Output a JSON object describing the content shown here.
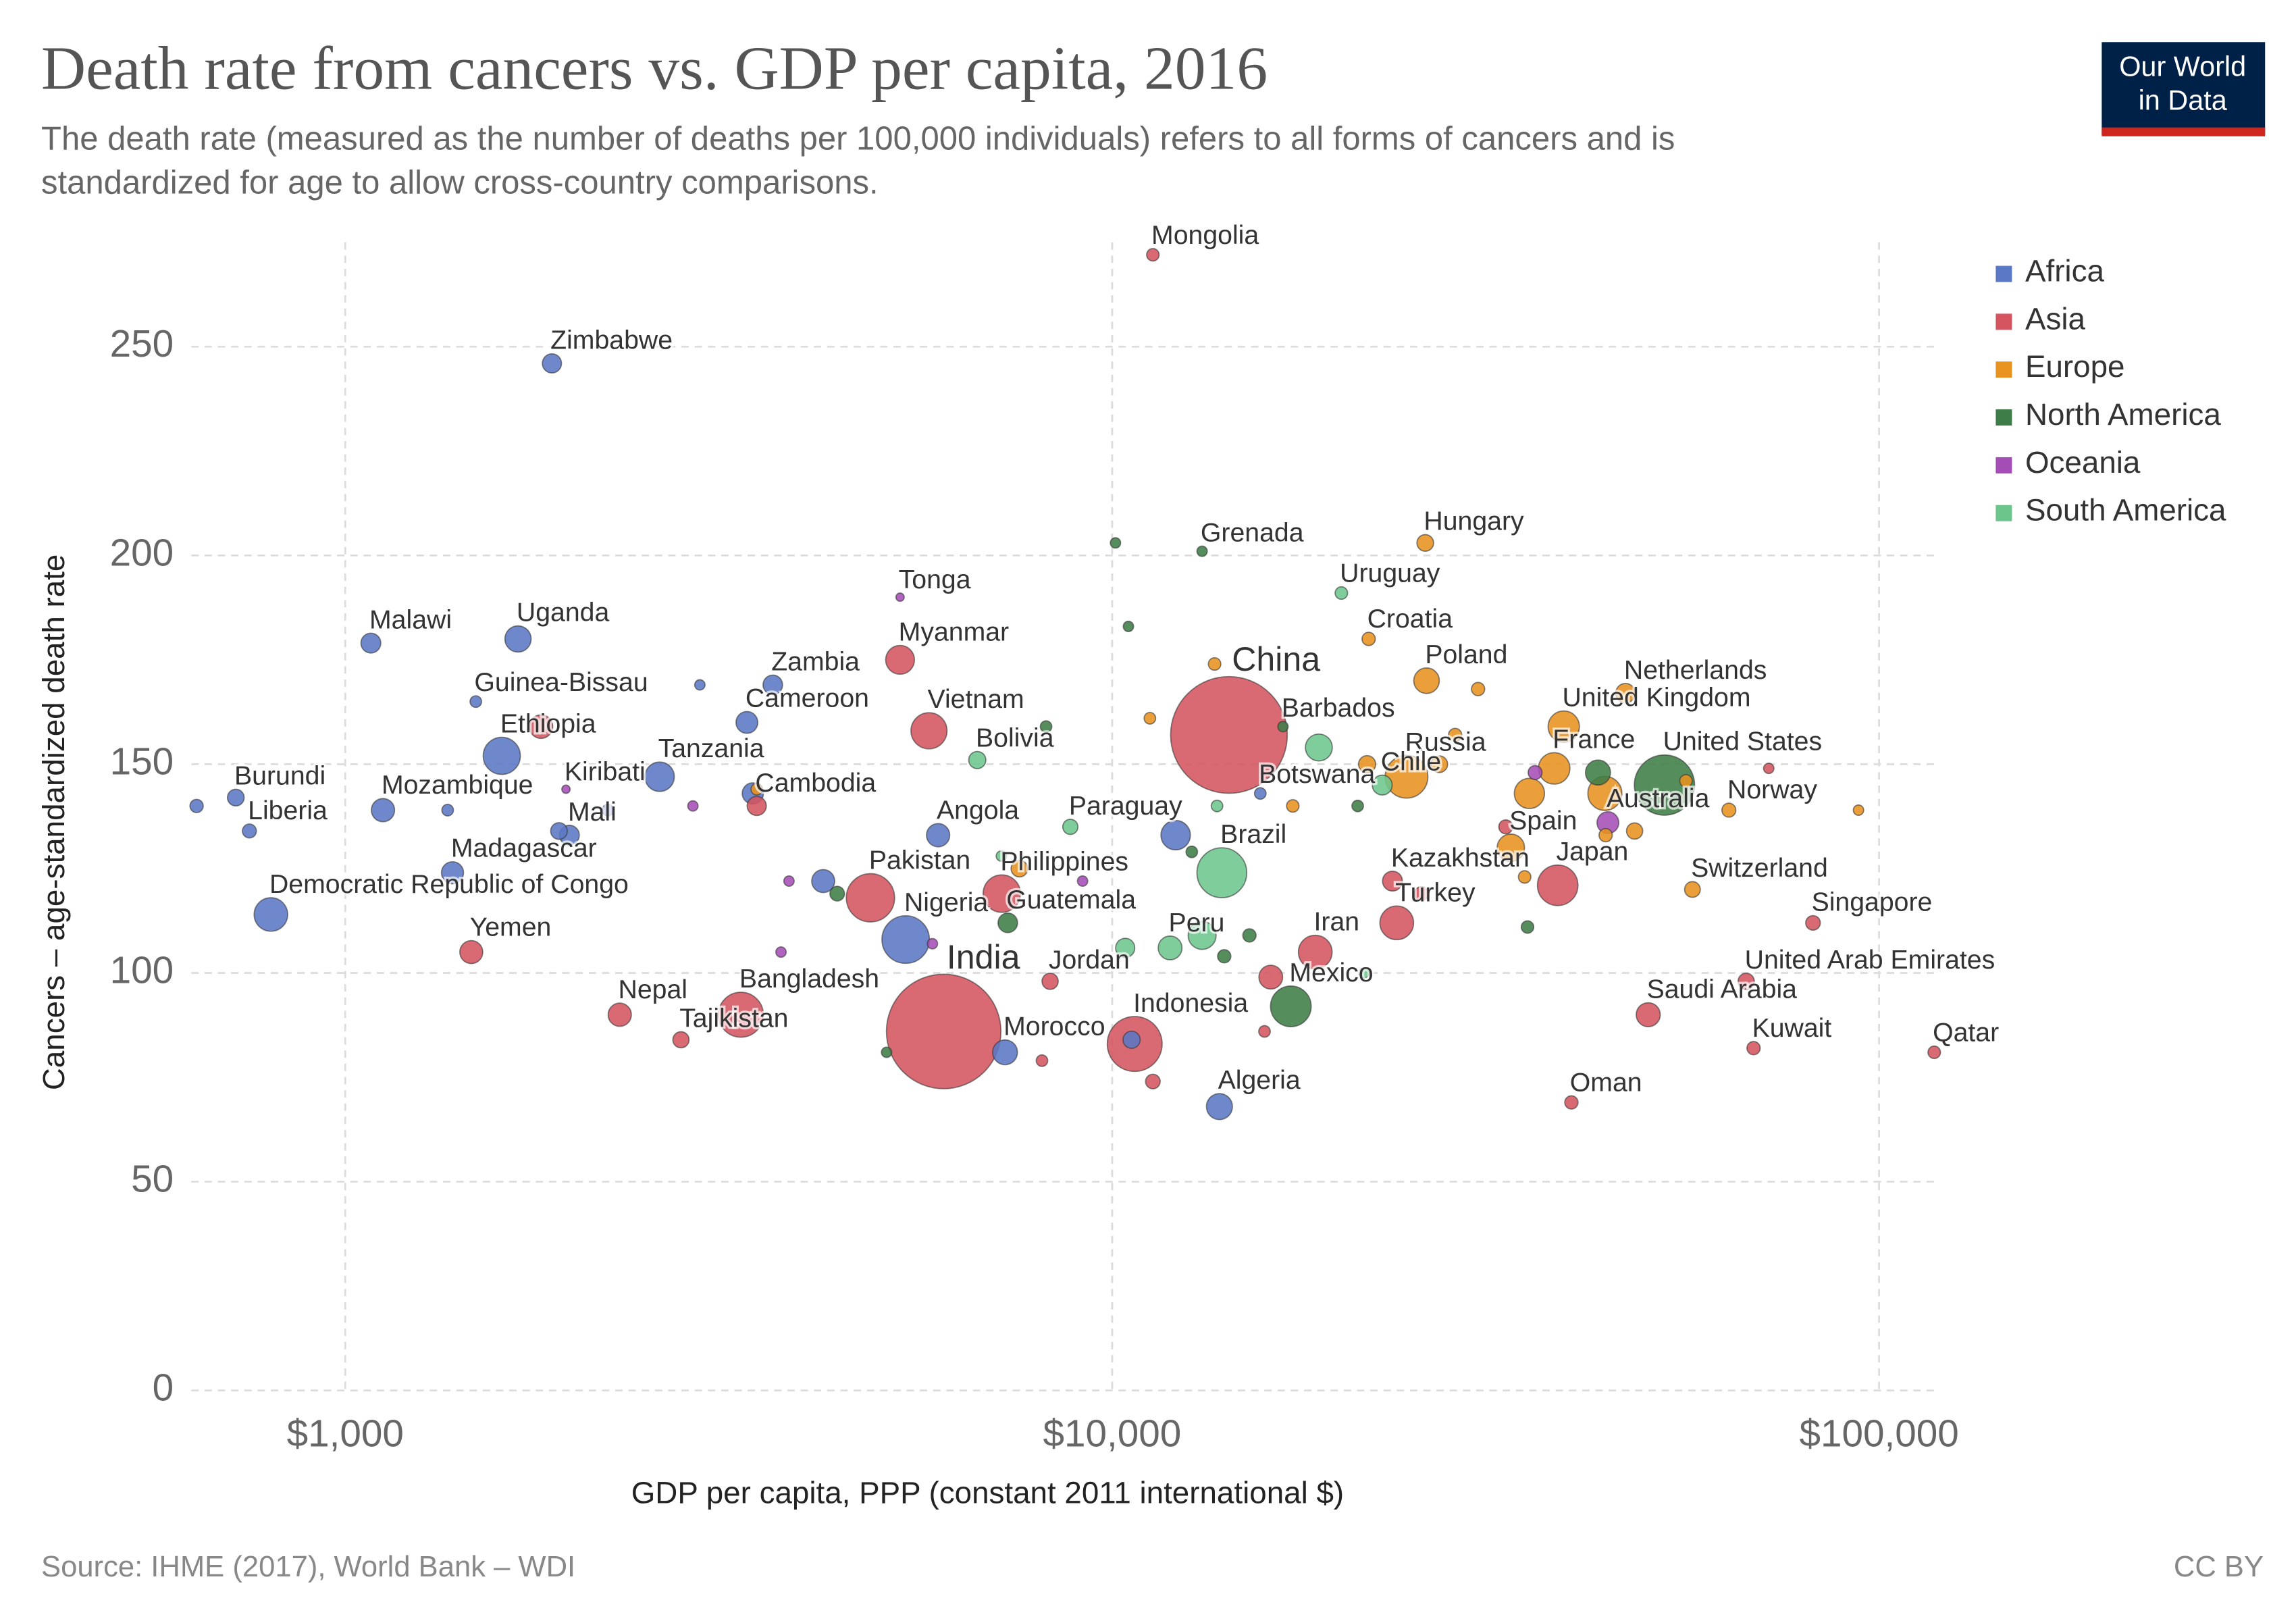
{
  "chart_data": {
    "type": "scatter",
    "title": "Death rate from cancers vs. GDP per capita, 2016",
    "subtitle": [
      "The death rate (measured as the number of deaths per 100,000 individuals) refers to all forms of cancers and is",
      "standardized for age to allow cross-country comparisons."
    ],
    "logo": [
      "Our World",
      "in Data"
    ],
    "x_label": "GDP per capita, PPP (constant 2011 international $)",
    "y_label": "Cancers – age-standardized death rate",
    "source": "Source: IHME (2017), World Bank – WDI",
    "license": "CC BY",
    "xscale": "log",
    "xlim": [
      630,
      120000
    ],
    "xticks": [
      {
        "value": 1000,
        "label": "$1,000"
      },
      {
        "value": 10000,
        "label": "$10,000"
      },
      {
        "value": 100000,
        "label": "$100,000"
      }
    ],
    "ylim": [
      0,
      275
    ],
    "yticks": [
      0,
      50,
      100,
      150,
      200,
      250
    ],
    "grid": true,
    "legend": "top-right",
    "series": [
      {
        "name": "Africa",
        "color": "#5b78c4",
        "x": [
          1860,
          1080,
          1680,
          1480,
          1600,
          720,
          750,
          1120,
          1960,
          1380,
          800,
          2570,
          3610,
          3340,
          5930,
          5380,
          7250,
          15600,
          13800,
          10600,
          12100,
          640,
          3400,
          2900,
          4200,
          1360,
          2200,
          1900
        ],
        "values": [
          246,
          179,
          180,
          165,
          152,
          142,
          134,
          139,
          133,
          124,
          114,
          147,
          169,
          160,
          133,
          108,
          81,
          143,
          68,
          84,
          133,
          140,
          143,
          169,
          122,
          139,
          139,
          134
        ],
        "sizes": [
          16,
          18,
          41,
          2,
          102,
          10,
          5,
          29,
          18,
          25,
          79,
          56,
          17,
          24,
          29,
          186,
          35,
          2,
          40,
          11,
          56,
          4,
          22,
          1,
          28,
          2,
          2,
          10
        ],
        "labels": [
          "Zimbabwe",
          "Malawi",
          "Uganda",
          "Guinea-Bissau",
          "Ethiopia",
          "Burundi",
          "Liberia",
          "Mozambique",
          "Mali",
          "Madagascar",
          "Democratic Republic of Congo",
          "Tanzania",
          "Zambia",
          "Cameroon",
          "Angola",
          "Nigeria",
          "Morocco",
          "Botswana",
          "Algeria",
          null,
          null,
          null,
          null,
          null,
          null,
          null,
          null,
          null
        ]
      },
      {
        "name": "Asia",
        "color": "#d4545f",
        "x": [
          11300,
          5290,
          5770,
          3440,
          4840,
          7180,
          8300,
          3280,
          2280,
          2740,
          1460,
          6030,
          14200,
          10700,
          18400,
          23200,
          23500,
          38100,
          67100,
          50000,
          82000,
          68600,
          118000,
          39700,
          1800,
          11300,
          16100,
          25300,
          32600,
          71800,
          8100,
          15800
        ],
        "values": [
          272,
          175,
          158,
          140,
          118,
          119,
          98,
          90,
          90,
          84,
          105,
          86,
          157,
          83,
          105,
          122,
          112,
          121,
          98,
          90,
          112,
          82,
          81,
          69,
          159,
          74,
          99,
          119,
          135,
          149,
          79,
          86
        ],
        "sizes": [
          3,
          53,
          95,
          16,
          193,
          104,
          9,
          163,
          29,
          9,
          28,
          1324,
          1379,
          261,
          80,
          18,
          80,
          127,
          9,
          32,
          6,
          4,
          3,
          4,
          30,
          6,
          31,
          5,
          5,
          1,
          2,
          2
        ],
        "labels": [
          "Mongolia",
          "Myanmar",
          "Vietnam",
          "Cambodia",
          "Pakistan",
          "Philippines",
          "Jordan",
          "Bangladesh",
          "Nepal",
          "Tajikistan",
          "Yemen",
          "India",
          "China",
          "Indonesia",
          "Iran",
          "Kazakhstan",
          "Turkey",
          "Japan",
          "United Arab Emirates",
          "Saudi Arabia",
          "Singapore",
          "Kuwait",
          "Qatar",
          "Oman",
          null,
          null,
          null,
          null,
          null,
          null,
          null,
          null
        ]
      },
      {
        "name": "Europe",
        "color": "#e8921f",
        "x": [
          25600,
          21600,
          25700,
          24200,
          46700,
          38800,
          37700,
          33100,
          57100,
          63700,
          43900,
          35000,
          94000,
          13600,
          11200,
          28000,
          26700,
          21500,
          17200,
          48000,
          44000,
          56000,
          30000,
          34500,
          7570,
          3440
        ],
        "values": [
          203,
          180,
          170,
          147,
          167,
          159,
          149,
          130,
          120,
          139,
          143,
          143,
          139,
          174,
          161,
          157,
          150,
          150,
          140,
          134,
          133,
          146,
          168,
          123,
          125,
          144
        ],
        "sizes": [
          10,
          4,
          38,
          144,
          17,
          66,
          67,
          46,
          8,
          5,
          82,
          60,
          1,
          3,
          2,
          4,
          10,
          11,
          3,
          9,
          4,
          3,
          4,
          3,
          10,
          2
        ],
        "labels": [
          "Hungary",
          "Croatia",
          "Poland",
          "Russia",
          "Netherlands",
          "United Kingdom",
          "France",
          "Spain",
          "Switzerland",
          "Norway",
          null,
          null,
          null,
          null,
          null,
          null,
          null,
          null,
          null,
          null,
          null,
          null,
          null,
          null,
          null,
          null
        ]
      },
      {
        "name": "North America",
        "color": "#3e7d47",
        "x": [
          13100,
          16700,
          7310,
          17100,
          52500,
          43000,
          10100,
          10500,
          8200,
          4380,
          5080,
          12700,
          15100,
          14000,
          34800,
          20900
        ],
        "values": [
          201,
          159,
          112,
          92,
          145,
          148,
          203,
          183,
          159,
          119,
          81,
          129,
          109,
          104,
          111,
          140
        ],
        "sizes": [
          1,
          1,
          17,
          128,
          323,
          36,
          1,
          1,
          2,
          6,
          1,
          2,
          4,
          4,
          3,
          2
        ],
        "labels": [
          "Grenada",
          "Barbados",
          "Guatemala",
          "Mexico",
          "United States",
          null,
          null,
          null,
          null,
          null,
          null,
          null,
          null,
          null,
          null,
          null
        ]
      },
      {
        "name": "Oceania",
        "color": "#a54db6",
        "x": [
          5290,
          1940,
          44300,
          3790,
          3700,
          2840,
          5830,
          9150,
          35600
        ],
        "values": [
          190,
          144,
          136,
          122,
          105,
          140,
          107,
          122,
          148
        ],
        "sizes": [
          0.1,
          0.1,
          24,
          1,
          1,
          1,
          1,
          1,
          5
        ],
        "labels": [
          "Tonga",
          "Kiribati",
          "Australia",
          null,
          null,
          null,
          null,
          null,
          null
        ]
      },
      {
        "name": "South America",
        "color": "#6cc68c",
        "x": [
          19900,
          6670,
          8820,
          13900,
          22500,
          11900,
          18600,
          13100,
          10400,
          13700,
          7170,
          21300
        ],
        "values": [
          191,
          151,
          135,
          124,
          145,
          106,
          154,
          109,
          106,
          140,
          128,
          100
        ],
        "sizes": [
          3,
          11,
          7,
          208,
          18,
          31,
          44,
          49,
          16,
          2,
          1,
          1
        ],
        "labels": [
          "Uruguay",
          "Bolivia",
          "Paraguay",
          "Brazil",
          "Chile",
          "Peru",
          null,
          null,
          null,
          null,
          null,
          null
        ]
      }
    ]
  }
}
